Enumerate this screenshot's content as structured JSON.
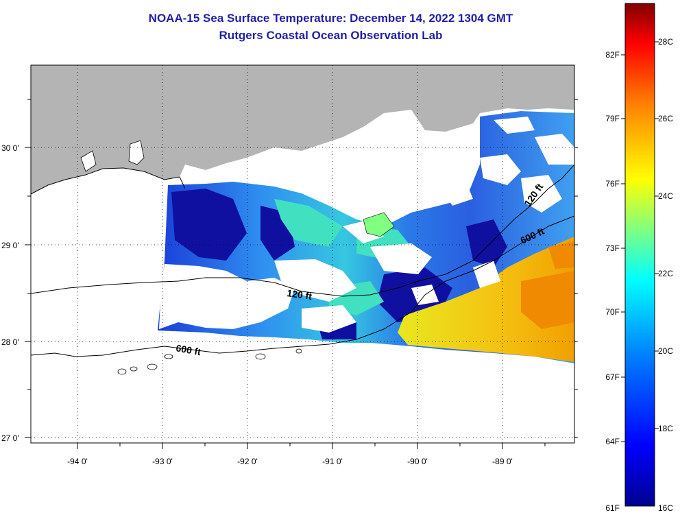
{
  "title": {
    "line1": "NOAA-15 Sea Surface Temperature:  December 14, 2022 1304 GMT",
    "line2": "Rutgers Coastal Ocean Observation Lab"
  },
  "map": {
    "lon_labels": [
      "-94 0'",
      "-93 0'",
      "-92 0'",
      "-91 0'",
      "-90 0'",
      "-89 0'"
    ],
    "lat_labels": [
      "30 0'",
      "29 0'",
      "28 0'",
      "27 0'"
    ],
    "contour_labels": [
      "120 ft",
      "600 ft",
      "120 ft",
      "600 ft"
    ],
    "colors": {
      "land": "#b4b4b4",
      "cloud": "#ffffff",
      "coast": "#000000"
    }
  },
  "colorbar": {
    "fahrenheit_labels": [
      "82F",
      "79F",
      "76F",
      "73F",
      "70F",
      "67F",
      "64F",
      "61F"
    ],
    "celsius_labels": [
      "28C",
      "26C",
      "24C",
      "22C",
      "20C",
      "18C",
      "16C"
    ],
    "colors": [
      "#00008f",
      "#0000ff",
      "#0080ff",
      "#00ffff",
      "#80ff80",
      "#ffff00",
      "#ff8000",
      "#ff0000",
      "#800000"
    ]
  }
}
